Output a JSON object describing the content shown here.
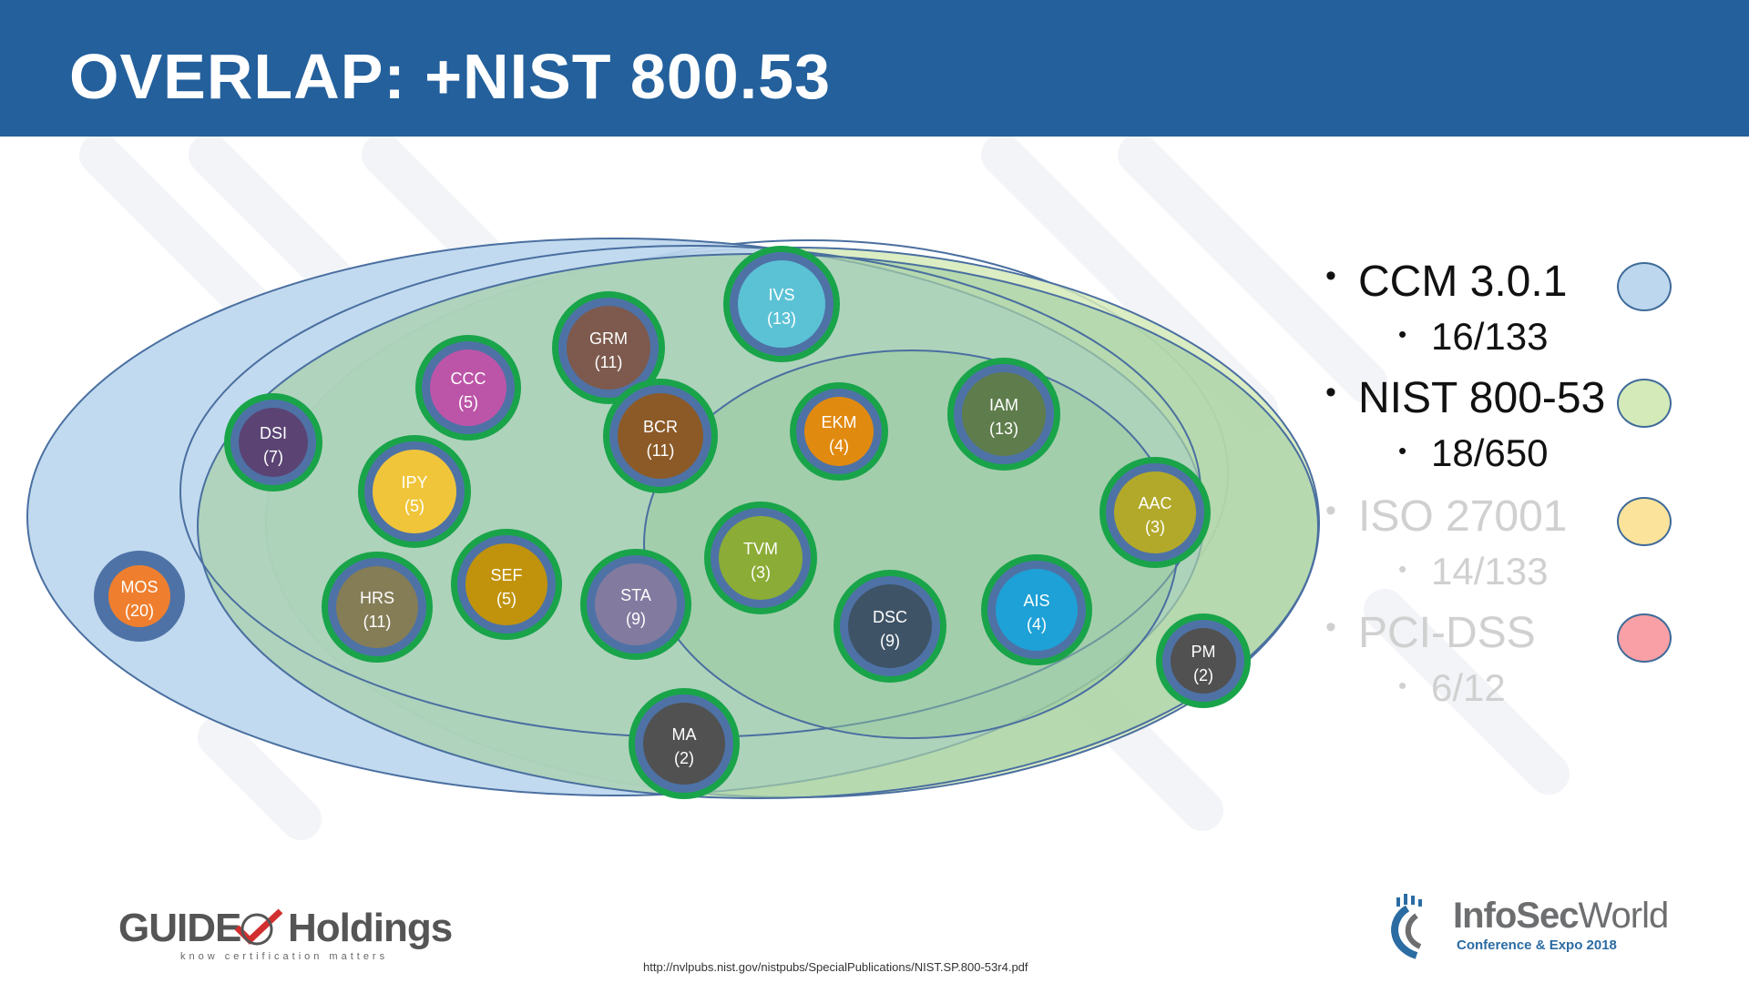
{
  "header": {
    "title": "OVERLAP: +NIST 800.53"
  },
  "legend": [
    {
      "label": "CCM 3.0.1",
      "value": "16/133",
      "color": "#bdd7ee",
      "active": true
    },
    {
      "label": "NIST 800-53",
      "value": "18/650",
      "color": "#d5eab9",
      "active": true
    },
    {
      "label": "ISO 27001",
      "value": "14/133",
      "color": "#fbe39b",
      "active": false
    },
    {
      "label": "PCI-DSS",
      "value": "6/12",
      "color": "#f8a0a5",
      "active": false
    }
  ],
  "domains": [
    {
      "code": "IVS",
      "count": "(13)",
      "color": "#5bc2d6"
    },
    {
      "code": "GRM",
      "count": "(11)",
      "color": "#7d5a4d"
    },
    {
      "code": "CCC",
      "count": "(5)",
      "color": "#bc55a8"
    },
    {
      "code": "DSI",
      "count": "(7)",
      "color": "#5b4474"
    },
    {
      "code": "BCR",
      "count": "(11)",
      "color": "#8c5a27"
    },
    {
      "code": "EKM",
      "count": "(4)",
      "color": "#e18a10"
    },
    {
      "code": "IAM",
      "count": "(13)",
      "color": "#5f7d4c"
    },
    {
      "code": "IPY",
      "count": "(5)",
      "color": "#f0c53a"
    },
    {
      "code": "AAC",
      "count": "(3)",
      "color": "#b2a92a"
    },
    {
      "code": "TVM",
      "count": "(3)",
      "color": "#8bac36"
    },
    {
      "code": "MOS",
      "count": "(20)",
      "color": "#ef7f2e"
    },
    {
      "code": "HRS",
      "count": "(11)",
      "color": "#857d56"
    },
    {
      "code": "SEF",
      "count": "(5)",
      "color": "#c1930d"
    },
    {
      "code": "STA",
      "count": "(9)",
      "color": "#837a9f"
    },
    {
      "code": "DSC",
      "count": "(9)",
      "color": "#3e5366"
    },
    {
      "code": "AIS",
      "count": "(4)",
      "color": "#1ea1d6"
    },
    {
      "code": "PM",
      "count": "(2)",
      "color": "#515151"
    },
    {
      "code": "MA",
      "count": "(2)",
      "color": "#515151"
    }
  ],
  "footer": {
    "url": "http://nvlpubs.nist.gov/nistpubs/SpecialPublications/NIST.SP.800-53r4.pdf",
    "left_logo_a": "GUIDE",
    "left_logo_b": "Holdings",
    "left_logo_tagline": "know certification matters",
    "right_logo_a": "InfoSec",
    "right_logo_b": "World",
    "right_logo_sub": "Conference & Expo 2018"
  }
}
